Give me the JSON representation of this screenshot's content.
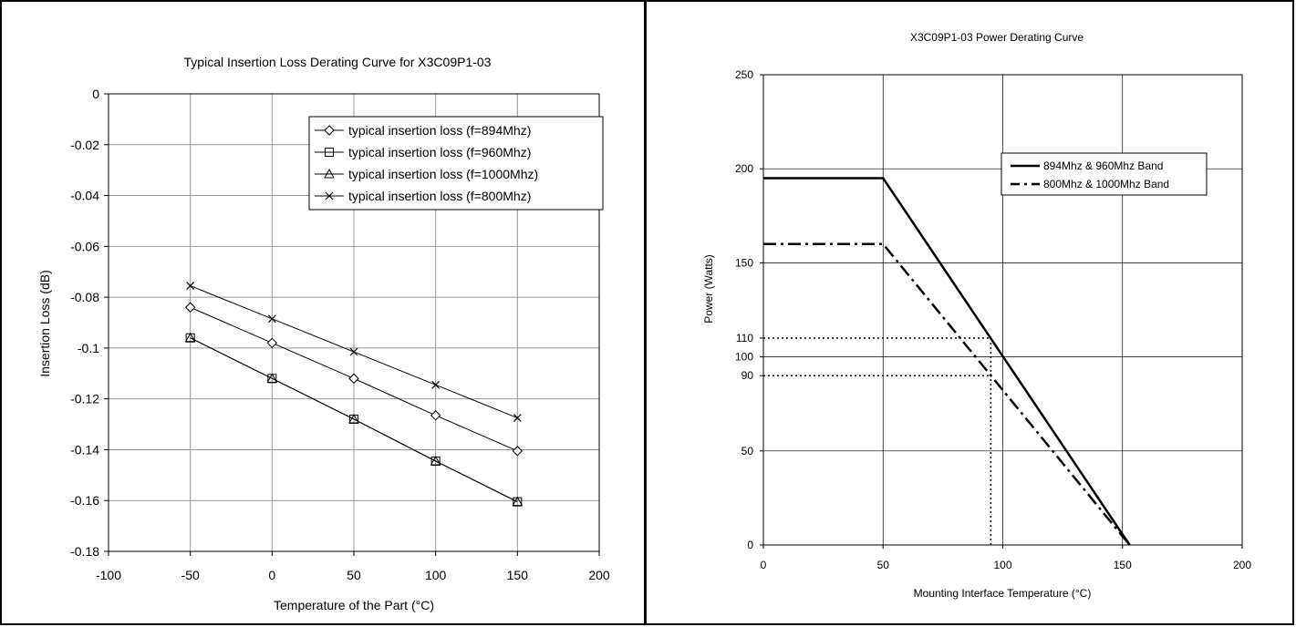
{
  "chart_data": [
    {
      "type": "line",
      "title": "Typical Insertion Loss Derating Curve for X3C09P1-03",
      "xlabel": "Temperature of the Part (°C)",
      "ylabel": "Insertion Loss (dB)",
      "xlim": [
        -100,
        200
      ],
      "ylim": [
        -0.18,
        0
      ],
      "xticks": [
        -100,
        -50,
        0,
        50,
        100,
        150,
        200
      ],
      "yticks": [
        0,
        -0.02,
        -0.04,
        -0.06,
        -0.08,
        -0.1,
        -0.12,
        -0.14,
        -0.16,
        -0.18
      ],
      "x": [
        -50,
        0,
        50,
        100,
        150
      ],
      "grid": true,
      "legend_position": "top-right",
      "series": [
        {
          "name": "typical insertion loss (f=894Mhz)",
          "marker": "diamond",
          "values": [
            -0.084,
            -0.098,
            -0.112,
            -0.1265,
            -0.1405
          ]
        },
        {
          "name": "typical insertion loss (f=960Mhz)",
          "marker": "square",
          "values": [
            -0.096,
            -0.112,
            -0.128,
            -0.1445,
            -0.1605
          ]
        },
        {
          "name": "typical insertion loss (f=1000Mhz)",
          "marker": "triangle",
          "values": [
            -0.096,
            -0.112,
            -0.128,
            -0.1445,
            -0.1605
          ]
        },
        {
          "name": "typical insertion loss (f=800Mhz)",
          "marker": "x",
          "values": [
            -0.0755,
            -0.0885,
            -0.1015,
            -0.1145,
            -0.1275
          ]
        }
      ]
    },
    {
      "type": "line",
      "title": "X3C09P1-03 Power Derating Curve",
      "xlabel": "Mounting Interface Temperature (°C)",
      "ylabel": "Power (Watts)",
      "xlim": [
        0,
        200
      ],
      "ylim": [
        0,
        250
      ],
      "xticks": [
        0,
        50,
        100,
        150,
        200
      ],
      "yticks": [
        0,
        50,
        90,
        100,
        110,
        150,
        200,
        250
      ],
      "grid": true,
      "legend_position": "top-right",
      "series": [
        {
          "name": "894Mhz & 960Mhz Band",
          "style": "solid",
          "x": [
            0,
            50,
            153
          ],
          "values": [
            195,
            195,
            0
          ]
        },
        {
          "name": "800Mhz & 1000Mhz Band",
          "style": "dash-dot",
          "x": [
            0,
            50,
            153
          ],
          "values": [
            160,
            160,
            0
          ]
        }
      ],
      "reference_lines": [
        {
          "style": "dotted",
          "x": [
            0,
            95
          ],
          "values": [
            110,
            110
          ]
        },
        {
          "style": "dotted",
          "x": [
            0,
            95
          ],
          "values": [
            90,
            90
          ]
        },
        {
          "style": "dotted",
          "x": [
            95,
            95
          ],
          "values": [
            110,
            0
          ]
        }
      ]
    }
  ]
}
